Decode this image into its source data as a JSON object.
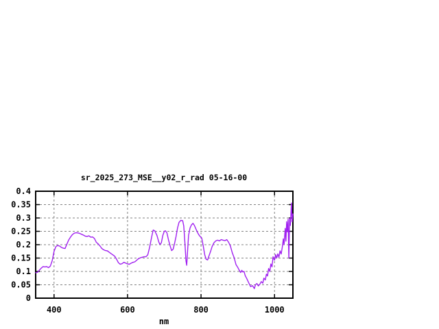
{
  "window": {
    "background": "#ffffff"
  },
  "chart_data": {
    "type": "line",
    "title": "sr_2025_273_MSE__y02_r_rad 05-16-00",
    "xlabel": "nm",
    "ylabel": "",
    "xlim": [
      350,
      1050
    ],
    "ylim": [
      0,
      0.4
    ],
    "grid": true,
    "legend": "none",
    "x_ticks": [
      {
        "value": 400,
        "label": "400"
      },
      {
        "value": 600,
        "label": "600"
      },
      {
        "value": 800,
        "label": "800"
      },
      {
        "value": 1000,
        "label": "1000"
      }
    ],
    "y_ticks": [
      {
        "value": 0,
        "label": "0"
      },
      {
        "value": 0.05,
        "label": "0.05"
      },
      {
        "value": 0.1,
        "label": "0.1"
      },
      {
        "value": 0.15,
        "label": "0.15"
      },
      {
        "value": 0.2,
        "label": "0.2"
      },
      {
        "value": 0.25,
        "label": "0.25"
      },
      {
        "value": 0.3,
        "label": "0.3"
      },
      {
        "value": 0.35,
        "label": "0.35"
      },
      {
        "value": 0.4,
        "label": "0.4"
      }
    ],
    "colors": {
      "line": "#a020f0",
      "grid": "#808080",
      "border": "#000000",
      "text": "#000000"
    },
    "series": [
      {
        "x": [
          350,
          355,
          360,
          365,
          370,
          375,
          380,
          385,
          390,
          395,
          400,
          405,
          410,
          415,
          420,
          425,
          430,
          435,
          440,
          445,
          450,
          455,
          460,
          465,
          470,
          475,
          480,
          485,
          490,
          495,
          500,
          505,
          510,
          515,
          520,
          525,
          530,
          535,
          540,
          545,
          550,
          555,
          560,
          565,
          570,
          575,
          580,
          585,
          590,
          595,
          600,
          605,
          610,
          615,
          620,
          625,
          630,
          635,
          640,
          645,
          650,
          655,
          660,
          665,
          668,
          670,
          674,
          680,
          685,
          688,
          692,
          696,
          700,
          703,
          707,
          712,
          716,
          720,
          724,
          728,
          732,
          736,
          740,
          745,
          750,
          753,
          756,
          759,
          761,
          763,
          766,
          770,
          774,
          778,
          782,
          786,
          790,
          794,
          798,
          802,
          806,
          810,
          814,
          818,
          822,
          826,
          830,
          835,
          840,
          845,
          850,
          855,
          860,
          865,
          870,
          875,
          880,
          885,
          890,
          895,
          900,
          905,
          908,
          911,
          914,
          917,
          920,
          925,
          930,
          935,
          940,
          945,
          948,
          952,
          956,
          960,
          964,
          968,
          971,
          975,
          978,
          981,
          984,
          987,
          990,
          993,
          996,
          1000,
          1003,
          1006,
          1009,
          1012,
          1015,
          1018,
          1021,
          1024,
          1026,
          1029,
          1031,
          1033,
          1035,
          1037,
          1039,
          1041,
          1043,
          1046,
          1048,
          1050
        ],
        "y": [
          0.095,
          0.097,
          0.105,
          0.112,
          0.118,
          0.117,
          0.118,
          0.114,
          0.12,
          0.14,
          0.175,
          0.193,
          0.197,
          0.195,
          0.19,
          0.187,
          0.186,
          0.202,
          0.218,
          0.229,
          0.238,
          0.243,
          0.245,
          0.244,
          0.242,
          0.239,
          0.236,
          0.232,
          0.231,
          0.233,
          0.228,
          0.229,
          0.223,
          0.209,
          0.203,
          0.195,
          0.186,
          0.181,
          0.178,
          0.177,
          0.172,
          0.167,
          0.162,
          0.157,
          0.146,
          0.133,
          0.127,
          0.129,
          0.134,
          0.131,
          0.128,
          0.127,
          0.131,
          0.134,
          0.136,
          0.142,
          0.148,
          0.151,
          0.153,
          0.155,
          0.155,
          0.162,
          0.19,
          0.225,
          0.245,
          0.255,
          0.252,
          0.235,
          0.21,
          0.201,
          0.207,
          0.235,
          0.25,
          0.252,
          0.245,
          0.215,
          0.195,
          0.178,
          0.183,
          0.205,
          0.23,
          0.262,
          0.283,
          0.291,
          0.29,
          0.27,
          0.21,
          0.14,
          0.123,
          0.17,
          0.235,
          0.262,
          0.274,
          0.28,
          0.272,
          0.259,
          0.247,
          0.237,
          0.23,
          0.225,
          0.195,
          0.163,
          0.145,
          0.143,
          0.16,
          0.175,
          0.192,
          0.207,
          0.214,
          0.217,
          0.214,
          0.219,
          0.217,
          0.215,
          0.219,
          0.209,
          0.195,
          0.17,
          0.152,
          0.126,
          0.115,
          0.102,
          0.096,
          0.104,
          0.098,
          0.1,
          0.085,
          0.072,
          0.057,
          0.043,
          0.047,
          0.036,
          0.05,
          0.055,
          0.046,
          0.052,
          0.062,
          0.056,
          0.075,
          0.068,
          0.09,
          0.083,
          0.111,
          0.1,
          0.128,
          0.117,
          0.155,
          0.142,
          0.163,
          0.15,
          0.166,
          0.153,
          0.177,
          0.165,
          0.19,
          0.222,
          0.2,
          0.261,
          0.213,
          0.286,
          0.248,
          0.295,
          0.15,
          0.299,
          0.272,
          0.356,
          0.286,
          0.315
        ]
      }
    ]
  }
}
